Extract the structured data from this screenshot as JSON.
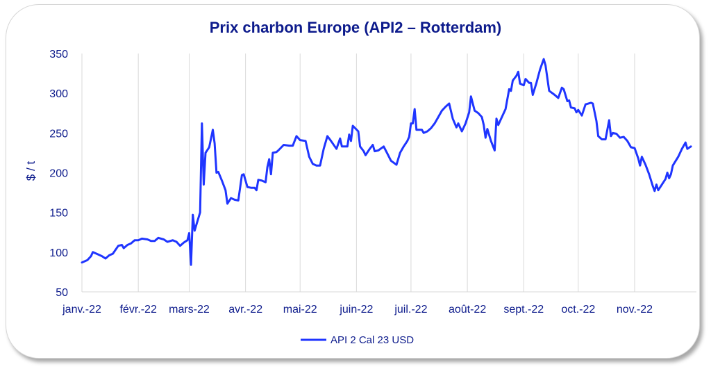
{
  "chart_data": {
    "type": "line",
    "title": "Prix charbon Europe (API2 – Rotterdam)",
    "xlabel": "",
    "ylabel": "$ / t",
    "ylim": [
      50,
      350
    ],
    "yticks": [
      50,
      100,
      150,
      200,
      250,
      300,
      350
    ],
    "xlim": [
      "2022-01-01",
      "2022-12-05"
    ],
    "x_tick_labels": [
      "janv.-22",
      "févr.-22",
      "mars-22",
      "avr.-22",
      "mai-22",
      "juin-22",
      "juil.-22",
      "août-22",
      "sept.-22",
      "oct.-22",
      "nov.-22"
    ],
    "x_tick_dates": [
      "2022-01-01",
      "2022-02-01",
      "2022-03-01",
      "2022-04-01",
      "2022-05-01",
      "2022-06-01",
      "2022-07-01",
      "2022-08-01",
      "2022-09-01",
      "2022-10-01",
      "2022-11-01"
    ],
    "grid": "vertical",
    "legend_position": "bottom",
    "colors": {
      "series": "#1f35ff",
      "text": "#0d1b8c",
      "grid": "#d9d9d9"
    },
    "series": [
      {
        "name": "API 2 Cal 23 USD",
        "points": [
          [
            "2022-01-01",
            87
          ],
          [
            "2022-01-04",
            90
          ],
          [
            "2022-01-06",
            95
          ],
          [
            "2022-01-07",
            100
          ],
          [
            "2022-01-10",
            97
          ],
          [
            "2022-01-12",
            95
          ],
          [
            "2022-01-14",
            92
          ],
          [
            "2022-01-16",
            96
          ],
          [
            "2022-01-18",
            98
          ],
          [
            "2022-01-21",
            108
          ],
          [
            "2022-01-23",
            109
          ],
          [
            "2022-01-24",
            105
          ],
          [
            "2022-01-26",
            109
          ],
          [
            "2022-01-28",
            111
          ],
          [
            "2022-01-30",
            115
          ],
          [
            "2022-02-01",
            115
          ],
          [
            "2022-02-03",
            117
          ],
          [
            "2022-02-06",
            116
          ],
          [
            "2022-02-08",
            114
          ],
          [
            "2022-02-10",
            114
          ],
          [
            "2022-02-12",
            118
          ],
          [
            "2022-02-15",
            116
          ],
          [
            "2022-02-17",
            113
          ],
          [
            "2022-02-20",
            115
          ],
          [
            "2022-02-22",
            113
          ],
          [
            "2022-02-24",
            108
          ],
          [
            "2022-02-26",
            112
          ],
          [
            "2022-02-28",
            115
          ],
          [
            "2022-03-01",
            124
          ],
          [
            "2022-03-02",
            84
          ],
          [
            "2022-03-03",
            147
          ],
          [
            "2022-03-04",
            127
          ],
          [
            "2022-03-05",
            135
          ],
          [
            "2022-03-07",
            150
          ],
          [
            "2022-03-08",
            262
          ],
          [
            "2022-03-09",
            185
          ],
          [
            "2022-03-10",
            225
          ],
          [
            "2022-03-12",
            232
          ],
          [
            "2022-03-14",
            254
          ],
          [
            "2022-03-15",
            237
          ],
          [
            "2022-03-16",
            200
          ],
          [
            "2022-03-17",
            201
          ],
          [
            "2022-03-19",
            190
          ],
          [
            "2022-03-21",
            178
          ],
          [
            "2022-03-22",
            161
          ],
          [
            "2022-03-24",
            168
          ],
          [
            "2022-03-26",
            166
          ],
          [
            "2022-03-28",
            165
          ],
          [
            "2022-03-30",
            197
          ],
          [
            "2022-03-31",
            198
          ],
          [
            "2022-04-02",
            182
          ],
          [
            "2022-04-04",
            181
          ],
          [
            "2022-04-06",
            181
          ],
          [
            "2022-04-07",
            178
          ],
          [
            "2022-04-08",
            191
          ],
          [
            "2022-04-10",
            190
          ],
          [
            "2022-04-12",
            188
          ],
          [
            "2022-04-13",
            207
          ],
          [
            "2022-04-14",
            217
          ],
          [
            "2022-04-15",
            198
          ],
          [
            "2022-04-16",
            225
          ],
          [
            "2022-04-18",
            226
          ],
          [
            "2022-04-19",
            228
          ],
          [
            "2022-04-22",
            235
          ],
          [
            "2022-04-25",
            234
          ],
          [
            "2022-04-27",
            234
          ],
          [
            "2022-04-29",
            246
          ],
          [
            "2022-05-01",
            241
          ],
          [
            "2022-05-04",
            240
          ],
          [
            "2022-05-06",
            220
          ],
          [
            "2022-05-08",
            211
          ],
          [
            "2022-05-10",
            209
          ],
          [
            "2022-05-12",
            209
          ],
          [
            "2022-05-14",
            230
          ],
          [
            "2022-05-16",
            246
          ],
          [
            "2022-05-18",
            240
          ],
          [
            "2022-05-21",
            230
          ],
          [
            "2022-05-23",
            243
          ],
          [
            "2022-05-24",
            233
          ],
          [
            "2022-05-27",
            233
          ],
          [
            "2022-05-28",
            248
          ],
          [
            "2022-05-29",
            240
          ],
          [
            "2022-05-30",
            259
          ],
          [
            "2022-06-02",
            252
          ],
          [
            "2022-06-03",
            233
          ],
          [
            "2022-06-05",
            227
          ],
          [
            "2022-06-06",
            222
          ],
          [
            "2022-06-08",
            229
          ],
          [
            "2022-06-10",
            235
          ],
          [
            "2022-06-11",
            227
          ],
          [
            "2022-06-13",
            228
          ],
          [
            "2022-06-16",
            233
          ],
          [
            "2022-06-18",
            224
          ],
          [
            "2022-06-20",
            215
          ],
          [
            "2022-06-23",
            210
          ],
          [
            "2022-06-25",
            225
          ],
          [
            "2022-06-27",
            233
          ],
          [
            "2022-06-29",
            240
          ],
          [
            "2022-06-30",
            245
          ],
          [
            "2022-07-01",
            262
          ],
          [
            "2022-07-02",
            262
          ],
          [
            "2022-07-03",
            280
          ],
          [
            "2022-07-04",
            254
          ],
          [
            "2022-07-07",
            254
          ],
          [
            "2022-07-08",
            250
          ],
          [
            "2022-07-10",
            252
          ],
          [
            "2022-07-12",
            256
          ],
          [
            "2022-07-14",
            262
          ],
          [
            "2022-07-16",
            270
          ],
          [
            "2022-07-18",
            278
          ],
          [
            "2022-07-20",
            283
          ],
          [
            "2022-07-22",
            287
          ],
          [
            "2022-07-24",
            268
          ],
          [
            "2022-07-26",
            257
          ],
          [
            "2022-07-27",
            262
          ],
          [
            "2022-07-29",
            252
          ],
          [
            "2022-07-31",
            262
          ],
          [
            "2022-08-02",
            276
          ],
          [
            "2022-08-03",
            296
          ],
          [
            "2022-08-04",
            287
          ],
          [
            "2022-08-05",
            278
          ],
          [
            "2022-08-07",
            275
          ],
          [
            "2022-08-09",
            270
          ],
          [
            "2022-08-10",
            260
          ],
          [
            "2022-08-11",
            244
          ],
          [
            "2022-08-12",
            255
          ],
          [
            "2022-08-14",
            240
          ],
          [
            "2022-08-16",
            228
          ],
          [
            "2022-08-17",
            268
          ],
          [
            "2022-08-18",
            260
          ],
          [
            "2022-08-20",
            270
          ],
          [
            "2022-08-22",
            280
          ],
          [
            "2022-08-24",
            305
          ],
          [
            "2022-08-25",
            303
          ],
          [
            "2022-08-26",
            316
          ],
          [
            "2022-08-28",
            322
          ],
          [
            "2022-08-29",
            327
          ],
          [
            "2022-08-30",
            312
          ],
          [
            "2022-09-01",
            310
          ],
          [
            "2022-09-02",
            318
          ],
          [
            "2022-09-04",
            313
          ],
          [
            "2022-09-05",
            313
          ],
          [
            "2022-09-06",
            298
          ],
          [
            "2022-09-08",
            313
          ],
          [
            "2022-09-10",
            330
          ],
          [
            "2022-09-12",
            343
          ],
          [
            "2022-09-13",
            335
          ],
          [
            "2022-09-15",
            303
          ],
          [
            "2022-09-18",
            298
          ],
          [
            "2022-09-20",
            294
          ],
          [
            "2022-09-22",
            307
          ],
          [
            "2022-09-23",
            305
          ],
          [
            "2022-09-25",
            290
          ],
          [
            "2022-09-26",
            291
          ],
          [
            "2022-09-27",
            282
          ],
          [
            "2022-09-29",
            281
          ],
          [
            "2022-09-30",
            276
          ],
          [
            "2022-10-01",
            279
          ],
          [
            "2022-10-03",
            272
          ],
          [
            "2022-10-05",
            286
          ],
          [
            "2022-10-08",
            288
          ],
          [
            "2022-10-09",
            287
          ],
          [
            "2022-10-11",
            265
          ],
          [
            "2022-10-12",
            246
          ],
          [
            "2022-10-14",
            242
          ],
          [
            "2022-10-16",
            242
          ],
          [
            "2022-10-18",
            266
          ],
          [
            "2022-10-19",
            246
          ],
          [
            "2022-10-20",
            250
          ],
          [
            "2022-10-22",
            249
          ],
          [
            "2022-10-24",
            244
          ],
          [
            "2022-10-26",
            245
          ],
          [
            "2022-10-28",
            240
          ],
          [
            "2022-10-30",
            232
          ],
          [
            "2022-11-01",
            231
          ],
          [
            "2022-11-03",
            218
          ],
          [
            "2022-11-04",
            209
          ],
          [
            "2022-11-05",
            220
          ],
          [
            "2022-11-07",
            210
          ],
          [
            "2022-11-09",
            198
          ],
          [
            "2022-11-11",
            183
          ],
          [
            "2022-11-12",
            177
          ],
          [
            "2022-11-13",
            185
          ],
          [
            "2022-11-14",
            178
          ],
          [
            "2022-11-16",
            185
          ],
          [
            "2022-11-18",
            192
          ],
          [
            "2022-11-19",
            200
          ],
          [
            "2022-11-20",
            193
          ],
          [
            "2022-11-21",
            198
          ],
          [
            "2022-11-22",
            209
          ],
          [
            "2022-11-25",
            220
          ],
          [
            "2022-11-27",
            230
          ],
          [
            "2022-11-29",
            238
          ],
          [
            "2022-11-30",
            230
          ],
          [
            "2022-12-02",
            233
          ]
        ]
      }
    ]
  }
}
